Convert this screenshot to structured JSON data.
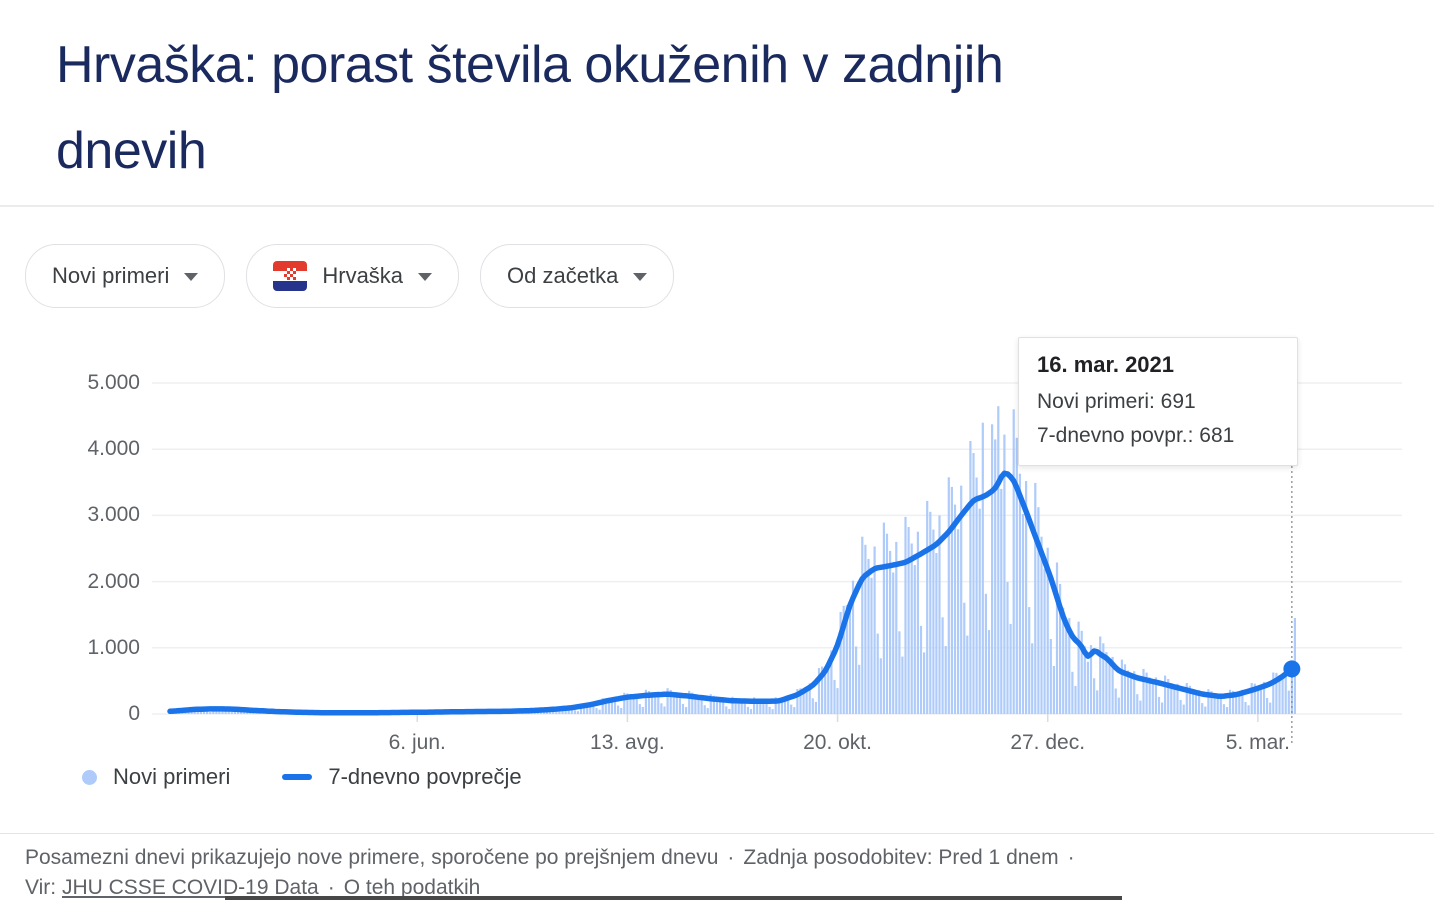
{
  "page": {
    "title": "Hrvaška: porast števila okuženih v zadnjih\ndnevih"
  },
  "colors": {
    "title": "#1b2a5e",
    "bars": "#aecbfa",
    "line": "#1a73e8",
    "grid": "#edeff1",
    "axis_tick": "#dadce0",
    "cursor": "#80868b",
    "muted_text": "#5f6368"
  },
  "filters": [
    {
      "label": "Novi primeri"
    },
    {
      "label": "Hrvaška",
      "flag": "croatia-flag"
    },
    {
      "label": "Od začetka"
    }
  ],
  "tooltip": {
    "date": "16. mar. 2021",
    "rows": [
      "Novi primeri: 691",
      "7-dnevno povpr.: 681"
    ]
  },
  "legend": [
    {
      "label": "Novi primeri",
      "swatch": "dot",
      "color": "#aecbfa"
    },
    {
      "label": "7-dnevno povprečje",
      "swatch": "line",
      "color": "#1a73e8"
    }
  ],
  "footer": {
    "text1": "Posamezni dnevi prikazujejo nove primere, sporočene po prejšnjem dnevu",
    "dot": "·",
    "text2": "Zadnja posodobitev: Pred 1 dnem",
    "vir_label": "Vir:",
    "link1": "JHU CSSE COVID-19 Data",
    "link2": "O teh podatkih"
  },
  "chart_data": {
    "type": "bar+line",
    "x_axis": {
      "total_days": 365,
      "ticks": [
        {
          "label": "6. jun.",
          "day": 80
        },
        {
          "label": "13. avg.",
          "day": 148
        },
        {
          "label": "20. okt.",
          "day": 216
        },
        {
          "label": "27. dec.",
          "day": 284
        },
        {
          "label": "5. mar.",
          "day": 352
        }
      ]
    },
    "y_axis": {
      "ticks": [
        {
          "label": "5.000",
          "value": 5000
        },
        {
          "label": "4.000",
          "value": 4000
        },
        {
          "label": "3.000",
          "value": 3000
        },
        {
          "label": "2.000",
          "value": 2000
        },
        {
          "label": "1.000",
          "value": 1000
        },
        {
          "label": "0",
          "value": 0
        }
      ],
      "max": 5000
    },
    "series": [
      {
        "name": "Novi primeri",
        "type": "bar",
        "color": "#aecbfa",
        "weekly_factors": [
          1.3,
          1.22,
          1.1,
          0.95,
          1.15,
          0.55,
          0.38
        ],
        "overrides": {
          "263": 4400,
          "268": 4650,
          "363": 691,
          "364": 1450
        }
      },
      {
        "name": "7-dnevno povprečje",
        "type": "line",
        "color": "#1a73e8",
        "points": [
          [
            0,
            40
          ],
          [
            8,
            70
          ],
          [
            14,
            78
          ],
          [
            20,
            75
          ],
          [
            27,
            55
          ],
          [
            34,
            38
          ],
          [
            42,
            25
          ],
          [
            52,
            18
          ],
          [
            62,
            18
          ],
          [
            72,
            22
          ],
          [
            80,
            26
          ],
          [
            90,
            32
          ],
          [
            100,
            38
          ],
          [
            108,
            40
          ],
          [
            116,
            50
          ],
          [
            124,
            70
          ],
          [
            130,
            95
          ],
          [
            136,
            140
          ],
          [
            142,
            205
          ],
          [
            148,
            255
          ],
          [
            155,
            285
          ],
          [
            161,
            300
          ],
          [
            168,
            270
          ],
          [
            175,
            230
          ],
          [
            182,
            200
          ],
          [
            190,
            192
          ],
          [
            197,
            195
          ],
          [
            203,
            290
          ],
          [
            208,
            430
          ],
          [
            212,
            640
          ],
          [
            216,
            1030
          ],
          [
            220,
            1650
          ],
          [
            224,
            2060
          ],
          [
            228,
            2200
          ],
          [
            233,
            2240
          ],
          [
            238,
            2290
          ],
          [
            243,
            2420
          ],
          [
            248,
            2560
          ],
          [
            252,
            2750
          ],
          [
            256,
            3000
          ],
          [
            260,
            3230
          ],
          [
            264,
            3300
          ],
          [
            267,
            3400
          ],
          [
            270,
            3670
          ],
          [
            273,
            3540
          ],
          [
            277,
            3060
          ],
          [
            281,
            2560
          ],
          [
            285,
            2060
          ],
          [
            289,
            1460
          ],
          [
            292,
            1160
          ],
          [
            295,
            1030
          ],
          [
            297,
            830
          ],
          [
            299,
            980
          ],
          [
            301,
            900
          ],
          [
            303,
            850
          ],
          [
            307,
            650
          ],
          [
            313,
            545
          ],
          [
            320,
            470
          ],
          [
            327,
            385
          ],
          [
            334,
            300
          ],
          [
            340,
            265
          ],
          [
            345,
            292
          ],
          [
            349,
            345
          ],
          [
            353,
            405
          ],
          [
            356,
            455
          ],
          [
            359,
            535
          ],
          [
            361,
            605
          ],
          [
            363,
            681
          ]
        ]
      }
    ],
    "end_marker": {
      "day": 363,
      "value": 681
    },
    "cursor_day": 363
  }
}
